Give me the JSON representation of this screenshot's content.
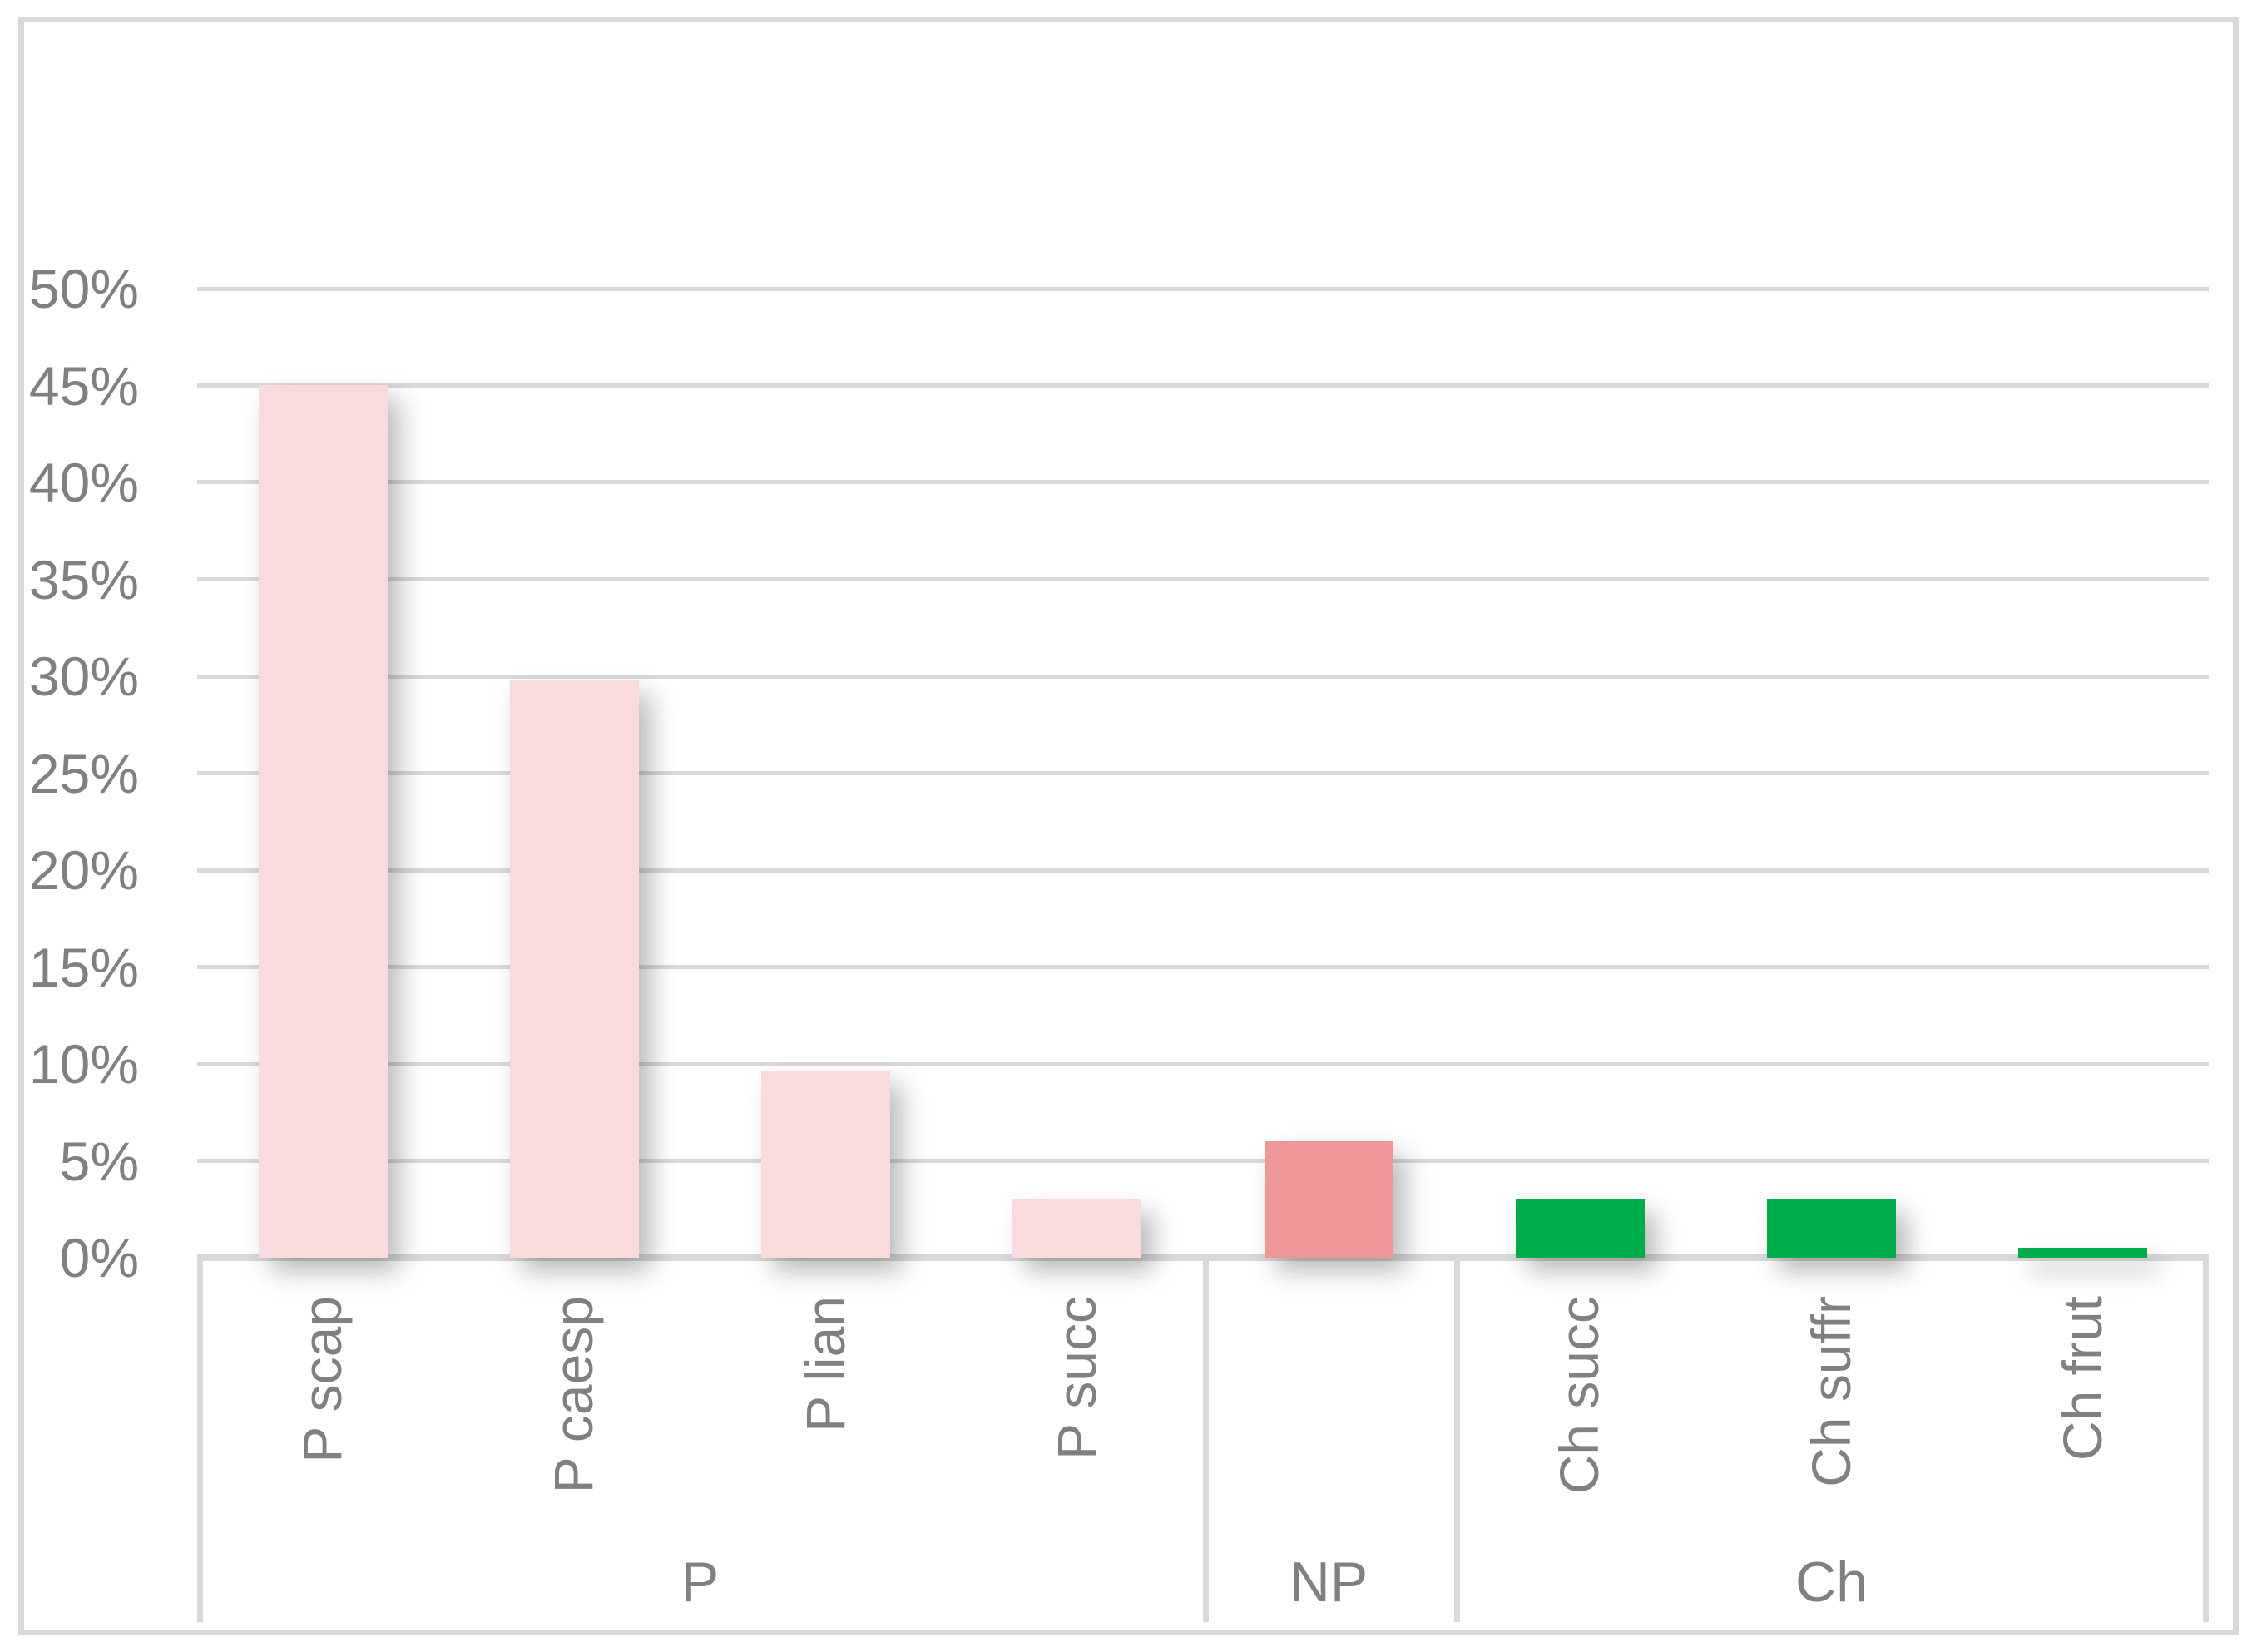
{
  "chart_data": {
    "type": "bar",
    "title": "",
    "xlabel": "",
    "ylabel": "",
    "ylim": [
      0,
      50
    ],
    "ytick_step": 5,
    "ytick_labels": [
      "0%",
      "5%",
      "10%",
      "15%",
      "20%",
      "25%",
      "30%",
      "35%",
      "40%",
      "45%",
      "50%"
    ],
    "grid": true,
    "legend": false,
    "colors": {
      "p_group": "#FADBDD",
      "np_group": "#EE9698",
      "ch_group": "#00AC4A",
      "gridline": "#D9D9D9",
      "axis_text": "#808080"
    },
    "groups": [
      {
        "label": "P",
        "color": "#FADBDD",
        "bars": [
          {
            "label": "P scap",
            "value": 45.0
          },
          {
            "label": "P caesp",
            "value": 29.8
          },
          {
            "label": "P lian",
            "value": 9.6
          },
          {
            "label": "P succ",
            "value": 3.0
          }
        ]
      },
      {
        "label": "NP",
        "color": "#EE9698",
        "bars": [
          {
            "label": "",
            "value": 6.0
          }
        ]
      },
      {
        "label": "Ch",
        "color": "#00AC4A",
        "bars": [
          {
            "label": "Ch succ",
            "value": 3.0
          },
          {
            "label": "Ch suffr",
            "value": 3.0
          },
          {
            "label": "Ch frut",
            "value": 0.5
          }
        ]
      }
    ]
  }
}
